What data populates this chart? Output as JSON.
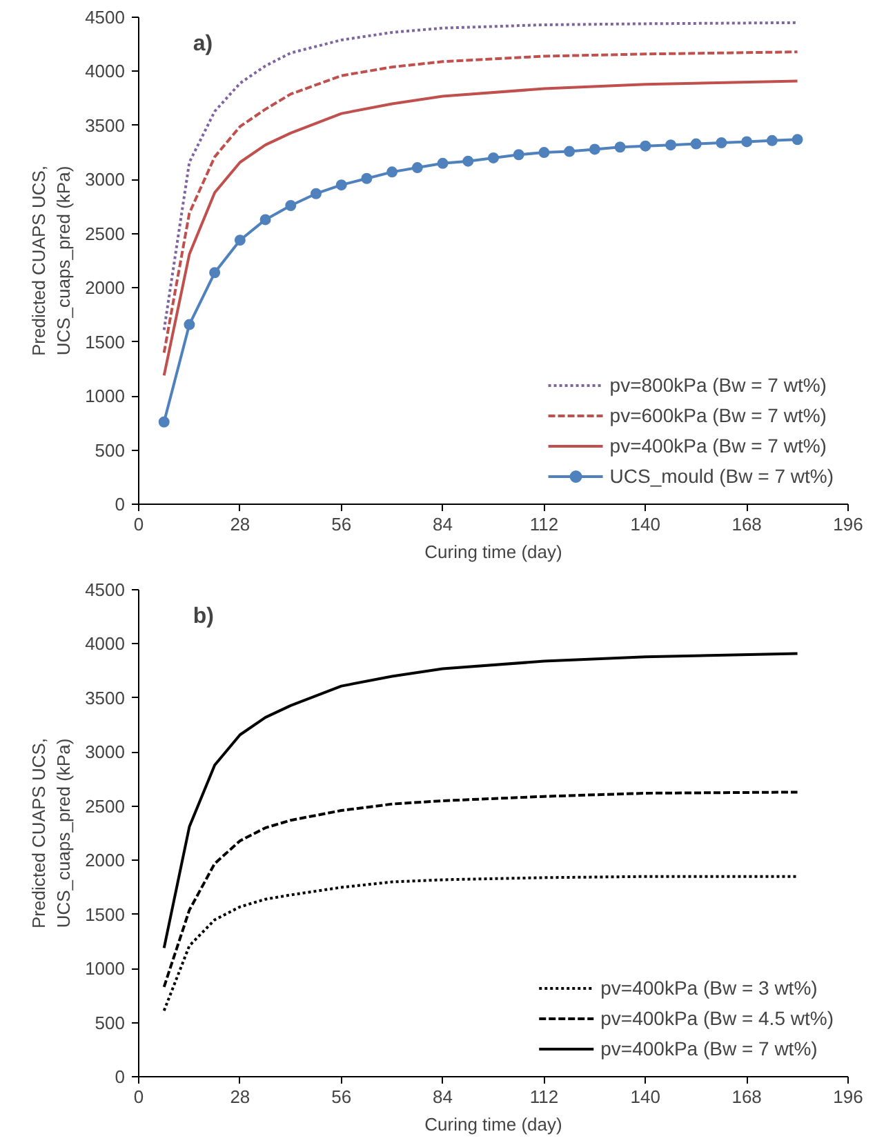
{
  "chart_data": [
    {
      "type": "line",
      "xlabel": "Curing time (day)",
      "ylabel": "Predicted CUAPS UCS,\nUCS_cuaps_pred (kPa)",
      "annotations": [
        "a)"
      ],
      "xlim": [
        0,
        196
      ],
      "xticks": [
        0,
        28,
        56,
        84,
        112,
        140,
        168,
        196
      ],
      "ylim": [
        0,
        4500
      ],
      "yticks": [
        0,
        500,
        1000,
        1500,
        2000,
        2500,
        3000,
        3500,
        4000,
        4500
      ],
      "grid": false,
      "legend": "bottom right",
      "series": [
        {
          "name": "pv=800kPa (Bw = 7 wt%)",
          "color": "#8064a2",
          "line_style": "dotted",
          "marker": "none",
          "x": [
            7,
            14,
            21,
            28,
            35,
            42,
            56,
            70,
            84,
            112,
            140,
            182
          ],
          "values": [
            1610,
            3160,
            3630,
            3890,
            4050,
            4170,
            4290,
            4360,
            4400,
            4430,
            4440,
            4450
          ]
        },
        {
          "name": "pv=600kPa (Bw = 7 wt%)",
          "color": "#c0504d",
          "line_style": "dashed",
          "marker": "none",
          "x": [
            7,
            14,
            21,
            28,
            35,
            42,
            56,
            70,
            84,
            112,
            140,
            182
          ],
          "values": [
            1400,
            2690,
            3210,
            3490,
            3650,
            3790,
            3960,
            4040,
            4090,
            4140,
            4160,
            4180
          ]
        },
        {
          "name": "pv=400kPa (Bw = 7 wt%)",
          "color": "#c0504d",
          "line_style": "solid",
          "marker": "none",
          "x": [
            7,
            14,
            21,
            28,
            35,
            42,
            56,
            70,
            84,
            112,
            140,
            182
          ],
          "values": [
            1190,
            2310,
            2880,
            3160,
            3320,
            3430,
            3610,
            3700,
            3770,
            3840,
            3880,
            3910
          ]
        },
        {
          "name": "UCS_mould (Bw = 7 wt%)",
          "color": "#4f81bd",
          "line_style": "solid",
          "marker": "circle",
          "x": [
            7,
            14,
            21,
            28,
            35,
            42,
            49,
            56,
            63,
            70,
            77,
            84,
            91,
            98,
            105,
            112,
            119,
            126,
            133,
            140,
            147,
            154,
            161,
            168,
            175,
            182
          ],
          "values": [
            760,
            1660,
            2140,
            2440,
            2630,
            2760,
            2870,
            2950,
            3010,
            3070,
            3110,
            3150,
            3170,
            3200,
            3230,
            3250,
            3260,
            3280,
            3300,
            3310,
            3320,
            3330,
            3340,
            3350,
            3360,
            3370
          ]
        }
      ]
    },
    {
      "type": "line",
      "xlabel": "Curing time (day)",
      "ylabel": "Predicted CUAPS UCS,\nUCS_cuaps_pred (kPa)",
      "annotations": [
        "b)"
      ],
      "xlim": [
        0,
        196
      ],
      "xticks": [
        0,
        28,
        56,
        84,
        112,
        140,
        168,
        196
      ],
      "ylim": [
        0,
        4500
      ],
      "yticks": [
        0,
        500,
        1000,
        1500,
        2000,
        2500,
        3000,
        3500,
        4000,
        4500
      ],
      "grid": false,
      "legend": "bottom right",
      "series": [
        {
          "name": "pv=400kPa (Bw = 3 wt%)",
          "color": "#000000",
          "line_style": "dotted",
          "marker": "none",
          "x": [
            7,
            14,
            21,
            28,
            35,
            42,
            56,
            70,
            84,
            112,
            140,
            182
          ],
          "values": [
            610,
            1210,
            1450,
            1570,
            1640,
            1680,
            1750,
            1800,
            1820,
            1840,
            1850,
            1850
          ]
        },
        {
          "name": "pv=400kPa (Bw = 4.5 wt%)",
          "color": "#000000",
          "line_style": "dashed",
          "marker": "none",
          "x": [
            7,
            14,
            21,
            28,
            35,
            42,
            56,
            70,
            84,
            112,
            140,
            182
          ],
          "values": [
            830,
            1540,
            1970,
            2180,
            2300,
            2370,
            2460,
            2520,
            2550,
            2590,
            2620,
            2630
          ]
        },
        {
          "name": "pv=400kPa (Bw = 7 wt%)",
          "color": "#000000",
          "line_style": "solid",
          "marker": "none",
          "x": [
            7,
            14,
            21,
            28,
            35,
            42,
            56,
            70,
            84,
            112,
            140,
            182
          ],
          "values": [
            1190,
            2310,
            2880,
            3160,
            3320,
            3430,
            3610,
            3700,
            3770,
            3840,
            3880,
            3910
          ]
        }
      ]
    }
  ]
}
